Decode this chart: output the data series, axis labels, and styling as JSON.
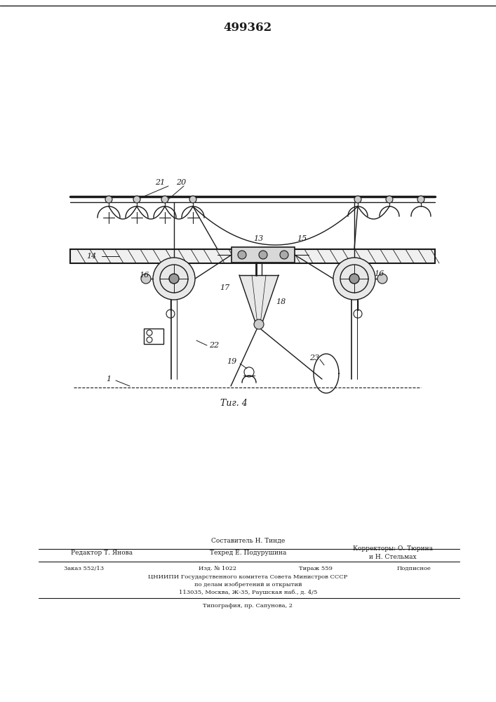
{
  "patent_number": "499362",
  "figure_label": "Τиг. 4",
  "background_color": "#ffffff",
  "line_color": "#1a1a1a",
  "footer": {
    "sestavitel": "Составитель Н. Тинде",
    "redaktor": "Редактор Т. Янова",
    "tehred": "Техред Е. Подурушина",
    "korrektory1": "Корректоры: О. Тюрина",
    "korrektory2": "и Н. Стельмах",
    "zakaz": "Заказ 552/13",
    "izd": "Изд. № 1022",
    "tirazh": "Тираж 559",
    "podpisnoe": "Подписное",
    "cniipи": "ЦНИИПИ Государственного комитета Совета Министров СССР",
    "dela": "по делам изобретений и открытий",
    "address": "113035, Москва, Ж-35, Раушская наб., д. 4/5",
    "tipografia": "Типография, пр. Сапунова, 2"
  }
}
